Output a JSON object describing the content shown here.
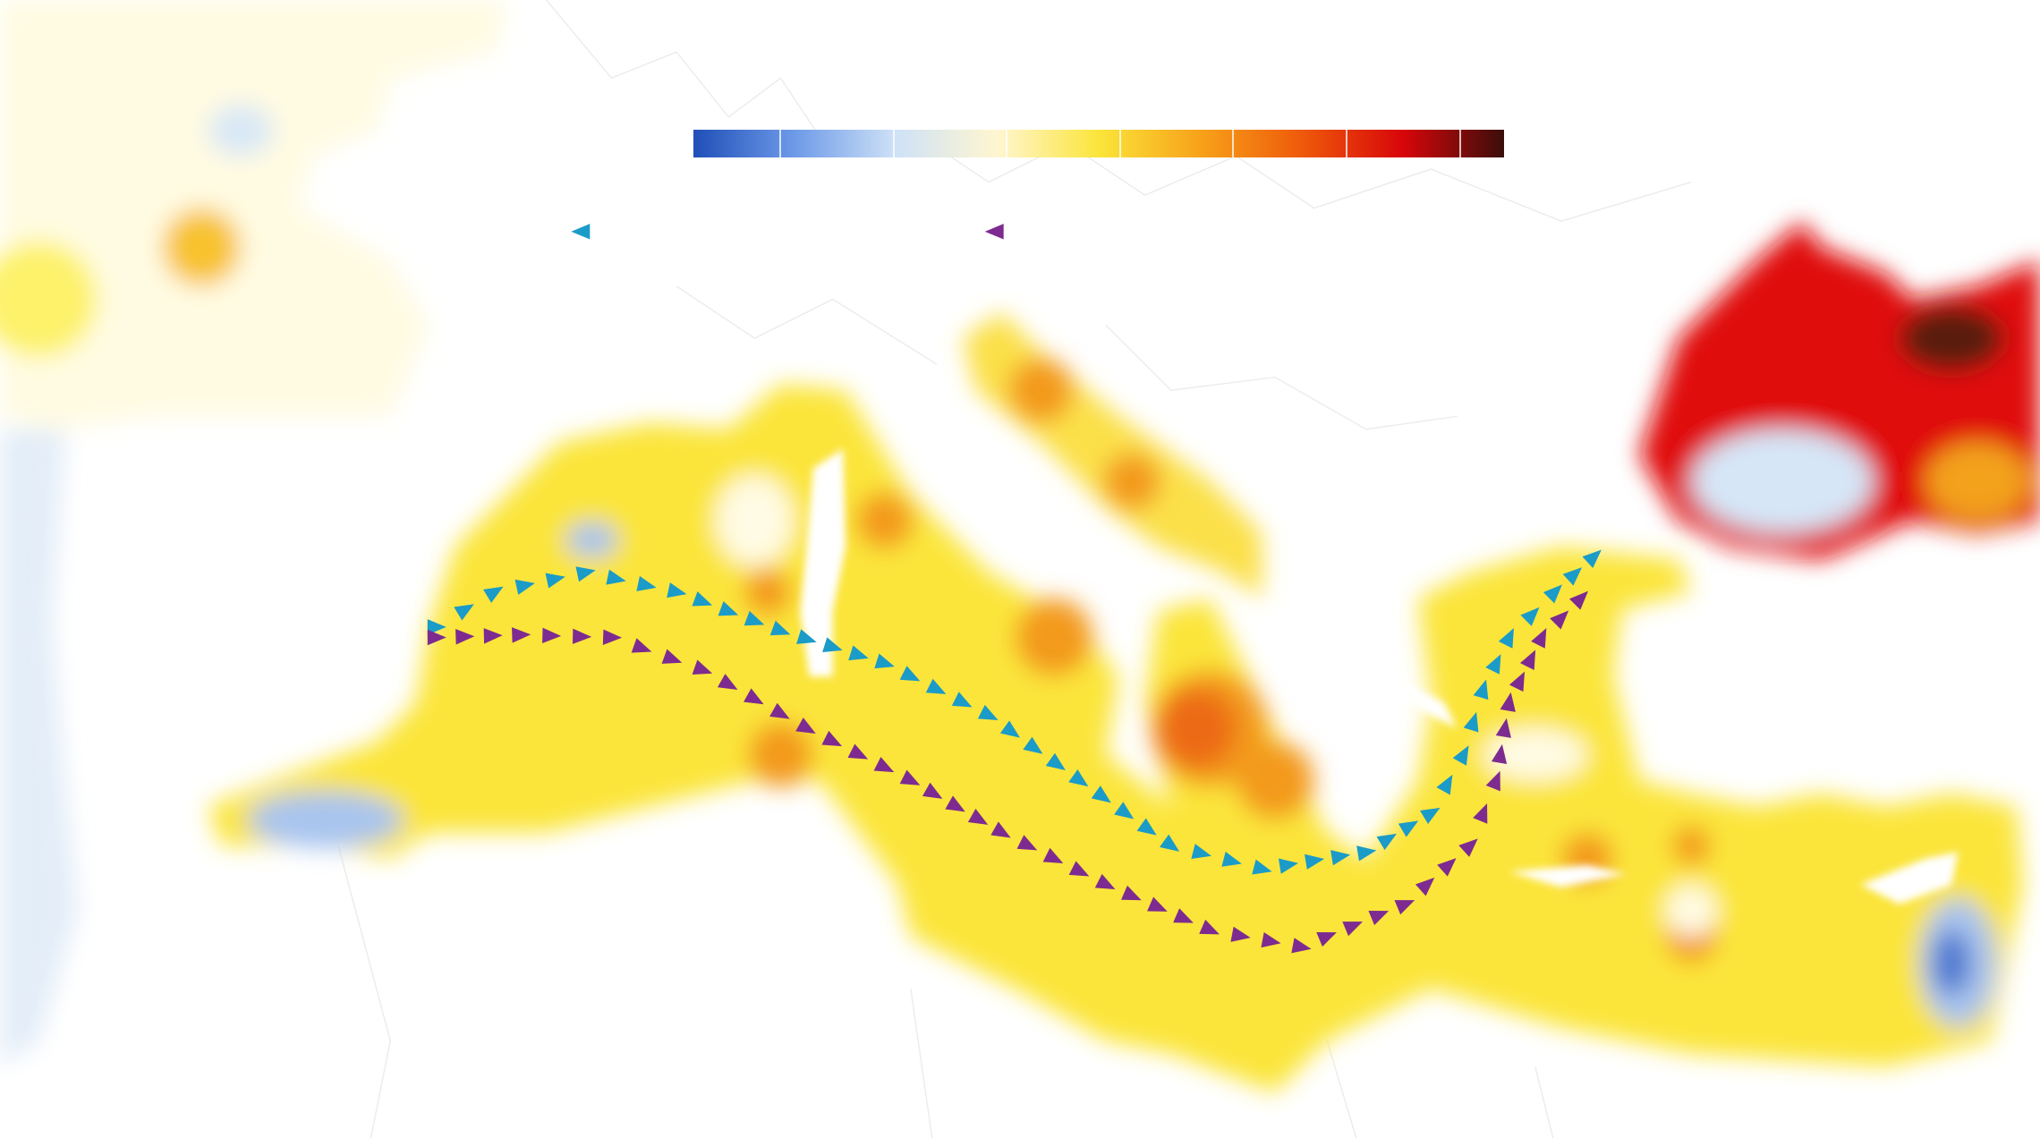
{
  "colorbar": {
    "colors": [
      "#1f4fb8",
      "#6e9ae8",
      "#cfe2f7",
      "#fff6d0",
      "#fbe53a",
      "#f7a21a",
      "#ef5a0a",
      "#d8060a",
      "#3a0e0a"
    ]
  },
  "legend": {
    "markers": [
      {
        "color": "#1b9bc8"
      },
      {
        "color": "#7d2b90"
      }
    ]
  }
}
